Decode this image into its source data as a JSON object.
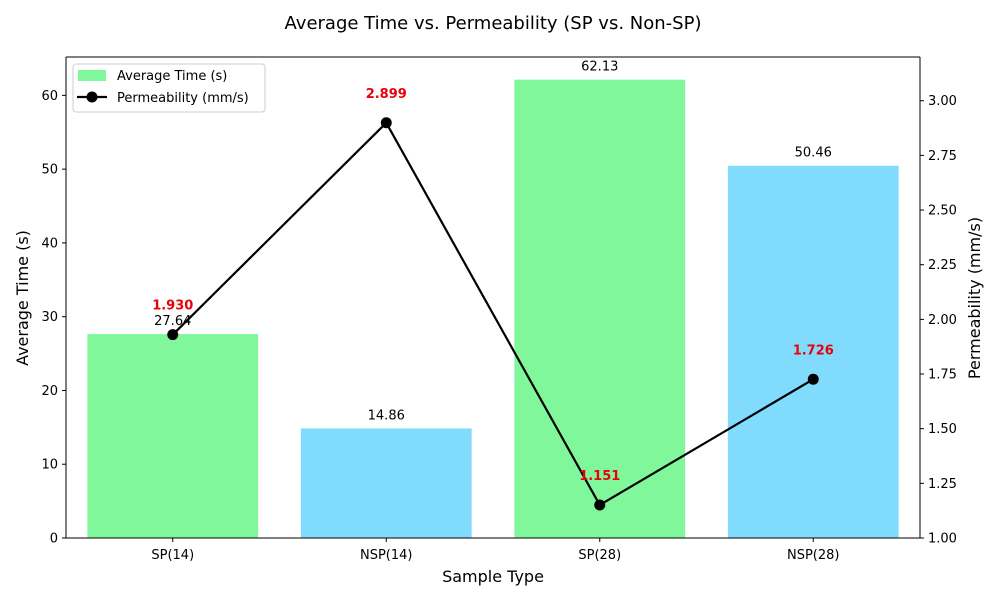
{
  "chart_data": {
    "type": "bar",
    "title": "Average Time vs. Permeability (SP vs. Non-SP)",
    "xlabel": "Sample Type",
    "ylabel": "Average Time (s)",
    "y2label": "Permeability (mm/s)",
    "categories": [
      "SP(14)",
      "NSP(14)",
      "SP(28)",
      "NSP(28)"
    ],
    "ylim": [
      0,
      65.2
    ],
    "y2lim": [
      1.0,
      3.2
    ],
    "yticks": [
      0,
      10,
      20,
      30,
      40,
      50,
      60
    ],
    "y2ticks": [
      1.0,
      1.25,
      1.5,
      1.75,
      2.0,
      2.25,
      2.5,
      2.75,
      3.0
    ],
    "grid": false,
    "legend_position": "top-left",
    "series": [
      {
        "name": "Average Time (s)",
        "kind": "bar",
        "axis": "left",
        "values": [
          27.64,
          14.86,
          62.13,
          50.46
        ],
        "value_labels": [
          "27.64",
          "14.86",
          "62.13",
          "50.46"
        ],
        "colors": [
          "#80f79b",
          "#80dbfc",
          "#80f79b",
          "#80dbfc"
        ],
        "legend_color": "#80f79b"
      },
      {
        "name": "Permeability (mm/s)",
        "kind": "line",
        "axis": "right",
        "values": [
          1.93,
          2.899,
          1.151,
          1.726
        ],
        "value_labels": [
          "1.930",
          "2.899",
          "1.151",
          "1.726"
        ],
        "color": "#000000",
        "label_color": "#e8000b"
      }
    ]
  }
}
